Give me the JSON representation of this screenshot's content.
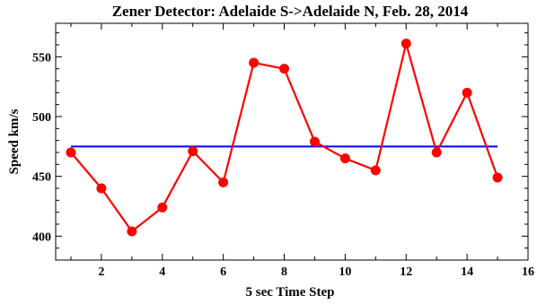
{
  "chart_data": {
    "type": "line",
    "title": "Zener Detector: Adelaide S->Adelaide N, Feb. 28, 2014",
    "xlabel": "5 sec Time Step",
    "ylabel": "Speed km/s",
    "xlim": [
      0.5,
      16
    ],
    "ylim": [
      380,
      578
    ],
    "xticks": [
      2,
      4,
      6,
      8,
      10,
      12,
      14,
      16
    ],
    "yticks": [
      400,
      450,
      500,
      550
    ],
    "grid": false,
    "series": [
      {
        "color": "#ff0000",
        "x": [
          1,
          2,
          3,
          4,
          5,
          6,
          7,
          8,
          9,
          10,
          11,
          12,
          13,
          14,
          15
        ],
        "values": [
          470,
          440,
          404,
          424,
          471,
          445,
          545,
          540,
          479,
          465,
          455,
          561,
          470,
          520,
          449
        ]
      }
    ],
    "reference_line": {
      "color": "#0000ff",
      "value": 475,
      "x_start": 1,
      "x_end": 15
    }
  }
}
